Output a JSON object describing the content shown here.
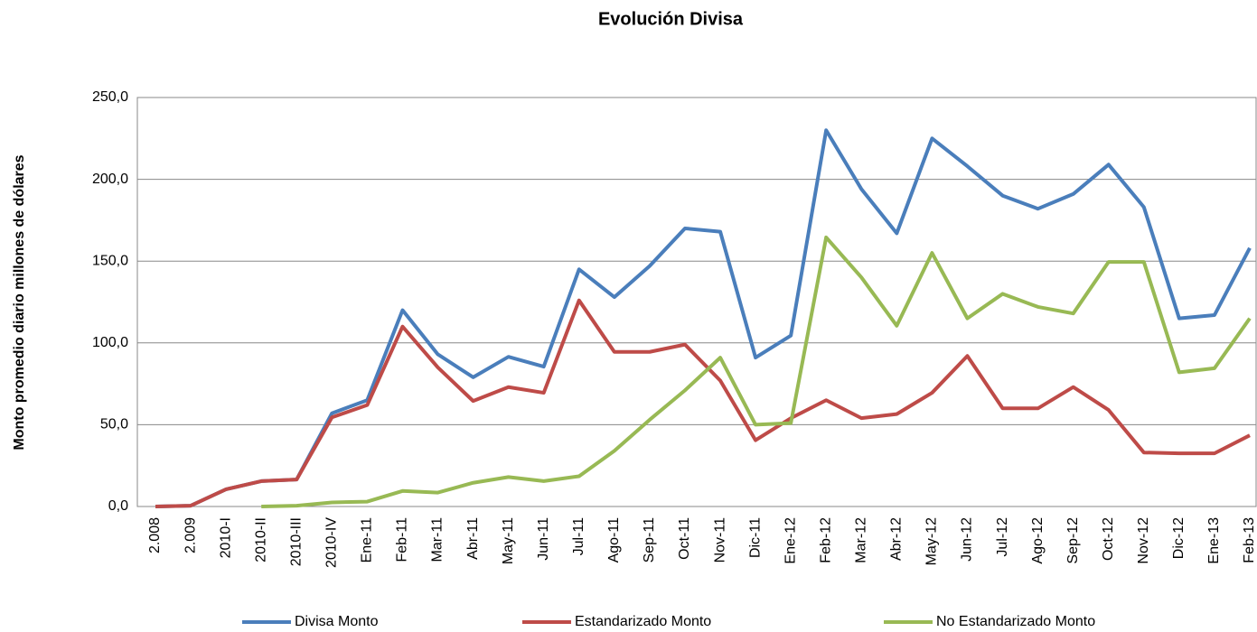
{
  "chart_data": {
    "type": "line",
    "title": "Evolución Divisa",
    "y_label": "Monto promedio diario millones de dólares",
    "categories": [
      "2.008",
      "2.009",
      "2010-I",
      "2010-II",
      "2010-III",
      "2010-IV",
      "Ene-11",
      "Feb-11",
      "Mar-11",
      "Abr-11",
      "May-11",
      "Jun-11",
      "Jul-11",
      "Ago-11",
      "Sep-11",
      "Oct-11",
      "Nov-11",
      "Dic-11",
      "Ene-12",
      "Feb-12",
      "Mar-12",
      "Abr-12",
      "May-12",
      "Jun-12",
      "Jul-12",
      "Ago-12",
      "Sep-12",
      "Oct-12",
      "Nov-12",
      "Dic-12",
      "Ene-13",
      "Feb-13"
    ],
    "series": [
      {
        "name": "Divisa Monto",
        "color": "#4a7ebb",
        "values": [
          0,
          0.5,
          10.5,
          15.5,
          16.5,
          57,
          65,
          120,
          93,
          79,
          91.5,
          85.5,
          145,
          128,
          147,
          170,
          168,
          91,
          104.5,
          230,
          194,
          167,
          225,
          208,
          190,
          182,
          191,
          209,
          183,
          115,
          117,
          158
        ]
      },
      {
        "name": "Estandarizado Monto",
        "color": "#be4b48",
        "values": [
          0,
          0.5,
          10.5,
          15.5,
          16.5,
          54.5,
          62,
          110,
          85,
          64.5,
          73,
          69.5,
          126,
          94.5,
          94.5,
          99,
          77,
          40.5,
          54,
          65,
          54,
          56.5,
          69.5,
          92,
          60,
          60,
          73,
          59,
          33,
          32.5,
          32.5,
          43.5
        ]
      },
      {
        "name": "No Estandarizado Monto",
        "color": "#98b954",
        "values": [
          null,
          null,
          null,
          0,
          0.5,
          2.5,
          3,
          9.5,
          8.5,
          14.5,
          18,
          15.5,
          18.5,
          34,
          53,
          71,
          91,
          50,
          51,
          164.5,
          140,
          110.5,
          155,
          115,
          130,
          122,
          118,
          149.5,
          149.5,
          82,
          84.5,
          115
        ]
      }
    ],
    "ylim": [
      0,
      250
    ],
    "yticks": [
      {
        "value": 0,
        "label": "0,0"
      },
      {
        "value": 50,
        "label": "50,0"
      },
      {
        "value": 100,
        "label": "100,0"
      },
      {
        "value": 150,
        "label": "150,0"
      },
      {
        "value": 200,
        "label": "200,0"
      },
      {
        "value": 250,
        "label": "250,0"
      }
    ],
    "grid": true,
    "legend": "bottom"
  }
}
